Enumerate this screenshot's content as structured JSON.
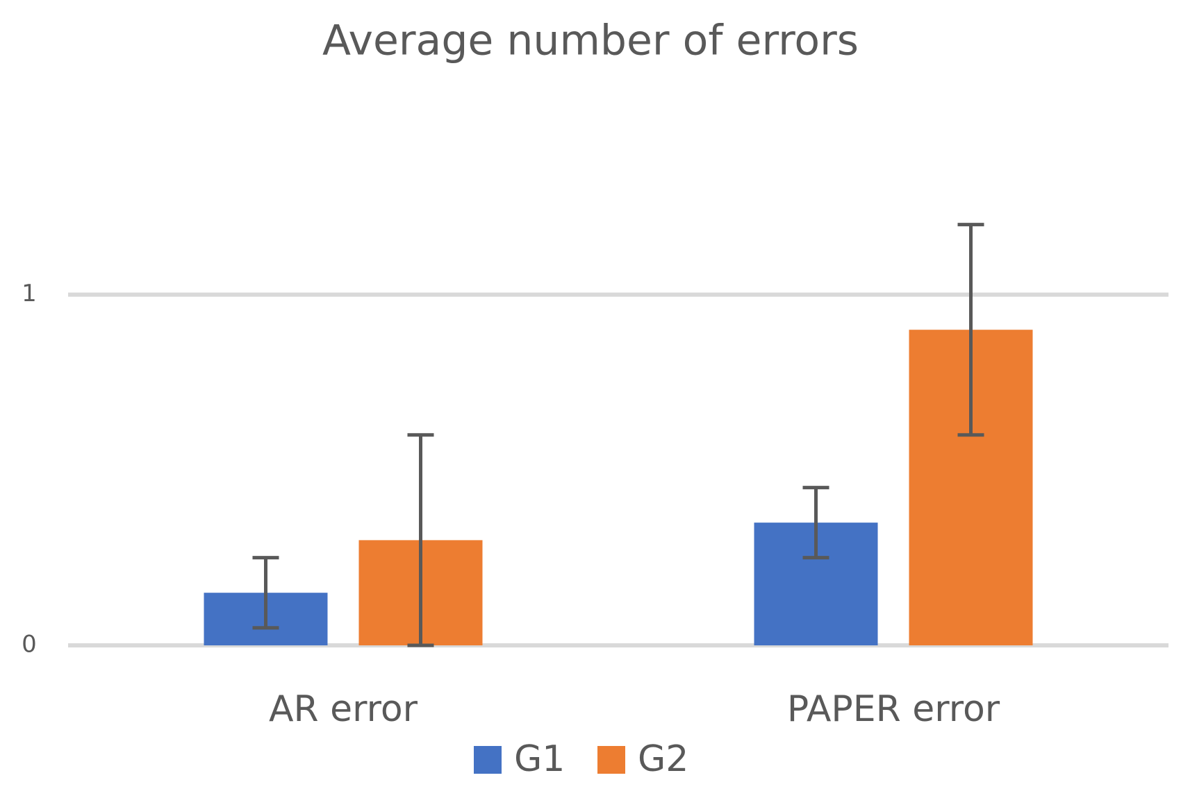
{
  "chart_data": {
    "type": "bar",
    "title": "Average number of errors",
    "categories": [
      "AR error",
      "PAPER error"
    ],
    "series": [
      {
        "name": "G1",
        "color": "#4472c4",
        "values": [
          0.15,
          0.35
        ],
        "errors": [
          0.1,
          0.1
        ]
      },
      {
        "name": "G2",
        "color": "#ed7d31",
        "values": [
          0.3,
          0.9
        ],
        "errors": [
          0.3,
          0.3
        ]
      }
    ],
    "ylim": [
      0,
      1.5
    ],
    "yticks": [
      0,
      1
    ],
    "grid": true,
    "error_color": "#595959",
    "legend": "bottom"
  }
}
